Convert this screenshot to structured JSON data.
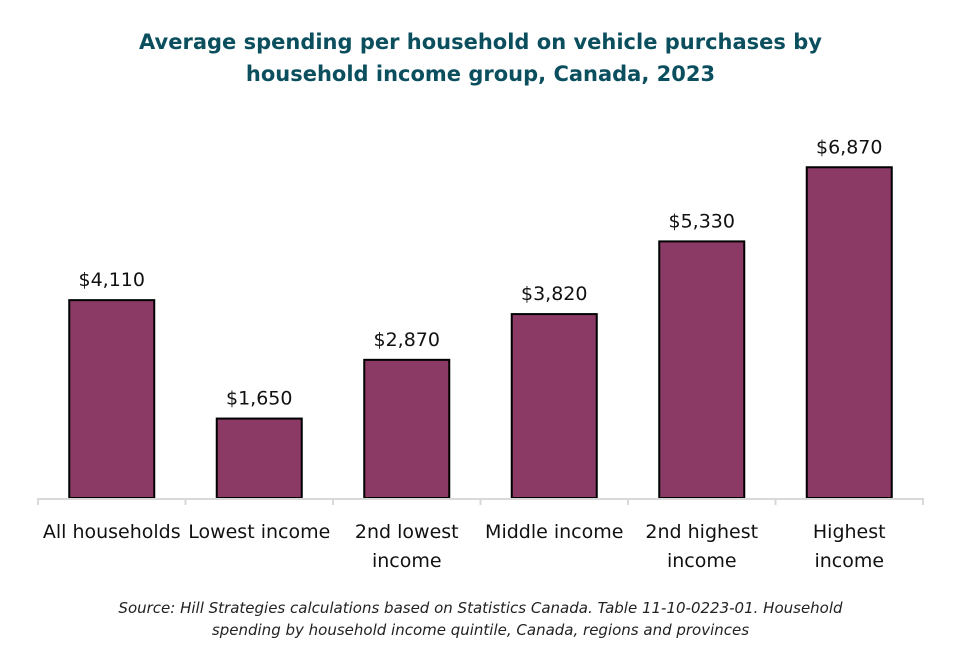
{
  "chart_data": {
    "type": "bar",
    "title": [
      "Average spending per household on vehicle purchases by",
      "household income group, Canada, 2023"
    ],
    "categories": [
      [
        "All households"
      ],
      [
        "Lowest income"
      ],
      [
        "2nd lowest",
        "income"
      ],
      [
        "Middle income"
      ],
      [
        "2nd highest",
        "income"
      ],
      [
        "Highest",
        "income"
      ]
    ],
    "values": [
      4110,
      1650,
      2870,
      3820,
      5330,
      6870
    ],
    "data_labels": [
      "$4,110",
      "$1,650",
      "$2,870",
      "$3,820",
      "$5,330",
      "$6,870"
    ],
    "xlabel": "",
    "ylabel": "",
    "ylim": [
      0,
      7000
    ],
    "grid": false,
    "legend": "none",
    "bar_color": "#8B3A66",
    "bar_edge_color": "#000000",
    "axis_color": "#D9D9D9",
    "title_color": "#0B4F5E"
  },
  "source": [
    "Source: Hill Strategies calculations based on Statistics Canada. Table 11-10-0223-01. Household",
    "spending by household income quintile, Canada, regions and provinces"
  ]
}
